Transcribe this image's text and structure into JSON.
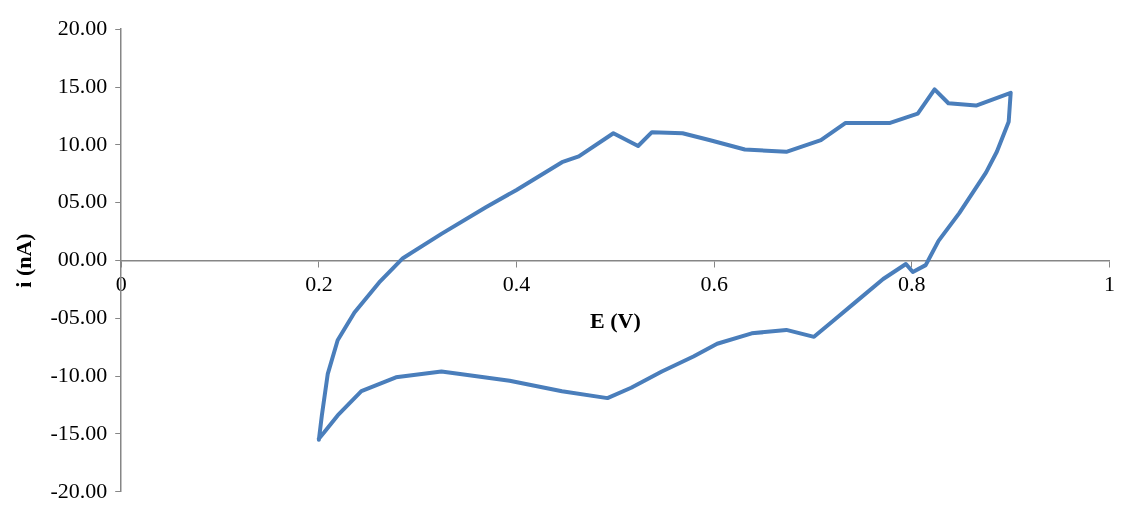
{
  "chart_data": {
    "type": "line",
    "xlabel": "E (V)",
    "ylabel": "i (nA)",
    "x": [
      0.2,
      0.203,
      0.209,
      0.219,
      0.236,
      0.261,
      0.285,
      0.324,
      0.369,
      0.4,
      0.446,
      0.463,
      0.498,
      0.523,
      0.537,
      0.568,
      0.596,
      0.631,
      0.673,
      0.708,
      0.733,
      0.778,
      0.806,
      0.823,
      0.837,
      0.865,
      0.9,
      0.898,
      0.886,
      0.875,
      0.848,
      0.827,
      0.814,
      0.801,
      0.794,
      0.771,
      0.743,
      0.722,
      0.701,
      0.673,
      0.638,
      0.603,
      0.579,
      0.547,
      0.516,
      0.492,
      0.446,
      0.393,
      0.341,
      0.324,
      0.278,
      0.243,
      0.219,
      0.205,
      0.2
    ],
    "series": [
      {
        "color": "#4a7ebb",
        "values": [
          -15.5,
          -13.4,
          -9.8,
          -6.9,
          -4.5,
          -1.9,
          0.2,
          2.3,
          4.6,
          6.1,
          8.5,
          9.0,
          11.0,
          9.9,
          11.1,
          11.0,
          10.4,
          9.6,
          9.4,
          10.4,
          11.9,
          11.9,
          12.7,
          14.8,
          13.6,
          13.4,
          14.5,
          12.0,
          9.4,
          7.6,
          4.1,
          1.7,
          -0.4,
          -1.0,
          -0.3,
          -1.6,
          -3.6,
          -5.1,
          -6.6,
          -6.0,
          -6.3,
          -7.2,
          -8.3,
          -9.6,
          -11.0,
          -11.9,
          -11.3,
          -10.4,
          -9.8,
          -9.6,
          -10.1,
          -11.3,
          -13.4,
          -14.9,
          -15.4
        ]
      }
    ],
    "xlim": [
      0,
      1
    ],
    "xticks": [
      0,
      0.2,
      0.4,
      0.6,
      0.8,
      1
    ],
    "ylim": [
      -20,
      20
    ],
    "yticks": [
      {
        "value": 20,
        "label": "20.00"
      },
      {
        "value": 15,
        "label": "15.00"
      },
      {
        "value": 10,
        "label": "10.00"
      },
      {
        "value": 5,
        "label": "05.00"
      },
      {
        "value": 0,
        "label": "00.00"
      },
      {
        "value": -5,
        "label": "-05.00"
      },
      {
        "value": -10,
        "label": "-10.00"
      },
      {
        "value": -15,
        "label": "-15.00"
      },
      {
        "value": -20,
        "label": "-20.00"
      }
    ],
    "legend": false,
    "grid": false,
    "marker": "none",
    "line_style": "solid"
  }
}
